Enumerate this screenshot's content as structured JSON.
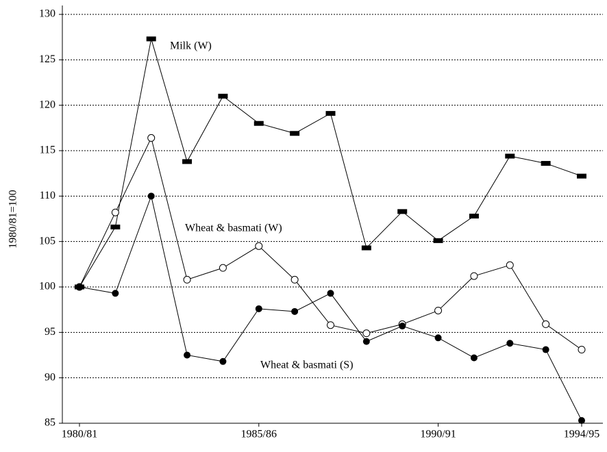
{
  "chart_data": {
    "type": "line",
    "y_label": "1980/81=100",
    "categories": [
      "1980/81",
      null,
      null,
      null,
      null,
      "1985/86",
      null,
      null,
      null,
      null,
      "1990/91",
      null,
      null,
      null,
      "1994/95"
    ],
    "series": [
      {
        "name": "Milk (W)",
        "color": "#000000",
        "marker": "rect",
        "values": [
          100,
          106.6,
          127.3,
          113.8,
          121.0,
          118.0,
          116.9,
          119.1,
          104.3,
          108.3,
          105.1,
          107.8,
          114.4,
          113.6,
          112.2
        ]
      },
      {
        "name": "Wheat & basmati (W)",
        "color": "#000000",
        "marker": "open-circle",
        "values": [
          100,
          108.2,
          116.4,
          100.8,
          102.1,
          104.5,
          100.8,
          95.8,
          94.9,
          95.9,
          97.4,
          101.2,
          102.4,
          95.9,
          93.1
        ]
      },
      {
        "name": "Wheat & basmati (S)",
        "color": "#000000",
        "marker": "circle",
        "values": [
          100,
          99.3,
          110.0,
          92.5,
          91.8,
          97.6,
          97.3,
          99.3,
          94.0,
          95.7,
          94.4,
          92.2,
          93.8,
          93.1,
          85.3
        ]
      }
    ],
    "ylim": [
      85,
      130
    ],
    "yticks": [
      85,
      90,
      95,
      100,
      105,
      110,
      115,
      120,
      125,
      130
    ],
    "grid": true
  }
}
